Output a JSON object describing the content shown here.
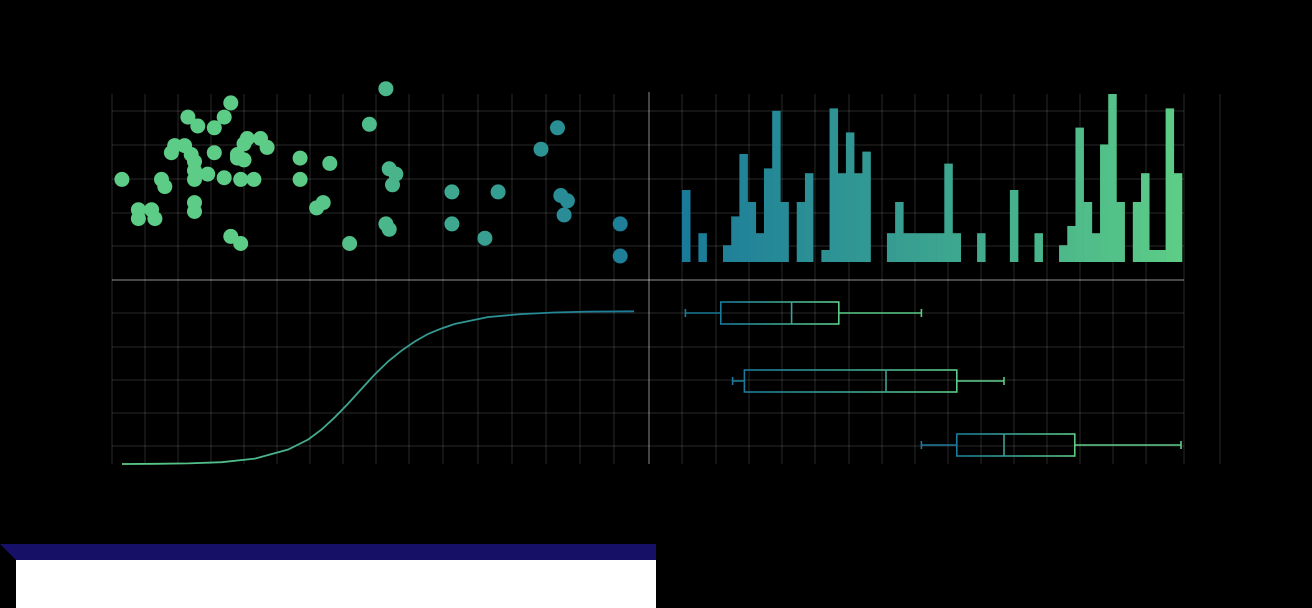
{
  "theme": {
    "background": "#000000",
    "gradient_start": "#1a7a9a",
    "gradient_end": "#5ccc86",
    "footer_bar": "#161067",
    "footer_panel": "#ffffff"
  },
  "chart_data": [
    {
      "type": "scatter",
      "grid": true,
      "legend": "none",
      "xlim": [
        0,
        16
      ],
      "ylim": [
        0,
        10
      ],
      "points": [
        [
          0.3,
          5.2
        ],
        [
          0.8,
          3.5
        ],
        [
          0.8,
          3.0
        ],
        [
          1.2,
          3.5
        ],
        [
          1.3,
          3.0
        ],
        [
          1.5,
          5.2
        ],
        [
          1.6,
          4.8
        ],
        [
          1.8,
          6.7
        ],
        [
          1.9,
          7.1
        ],
        [
          2.2,
          7.1
        ],
        [
          2.3,
          8.7
        ],
        [
          2.4,
          6.6
        ],
        [
          2.5,
          6.2
        ],
        [
          2.5,
          5.7
        ],
        [
          2.5,
          5.2
        ],
        [
          2.5,
          3.9
        ],
        [
          2.5,
          3.4
        ],
        [
          2.6,
          8.2
        ],
        [
          2.9,
          5.5
        ],
        [
          3.1,
          8.1
        ],
        [
          3.1,
          6.7
        ],
        [
          3.4,
          5.3
        ],
        [
          3.4,
          8.7
        ],
        [
          3.6,
          9.5
        ],
        [
          3.6,
          2.0
        ],
        [
          3.8,
          6.6
        ],
        [
          3.8,
          6.4
        ],
        [
          3.9,
          5.2
        ],
        [
          3.9,
          1.6
        ],
        [
          4.0,
          6.3
        ],
        [
          4.0,
          7.2
        ],
        [
          4.1,
          7.5
        ],
        [
          4.3,
          5.2
        ],
        [
          4.5,
          7.5
        ],
        [
          4.7,
          7.0
        ],
        [
          5.7,
          6.4
        ],
        [
          5.7,
          5.2
        ],
        [
          6.2,
          3.6
        ],
        [
          6.4,
          3.9
        ],
        [
          6.6,
          6.1
        ],
        [
          7.2,
          1.6
        ],
        [
          7.8,
          8.3
        ],
        [
          8.3,
          10.3
        ],
        [
          8.3,
          2.7
        ],
        [
          8.4,
          5.8
        ],
        [
          8.4,
          2.4
        ],
        [
          8.5,
          4.9
        ],
        [
          8.6,
          5.5
        ],
        [
          10.3,
          4.5
        ],
        [
          10.3,
          2.7
        ],
        [
          11.3,
          1.9
        ],
        [
          11.7,
          4.5
        ],
        [
          13.0,
          6.9
        ],
        [
          13.5,
          8.1
        ],
        [
          13.6,
          4.3
        ],
        [
          13.7,
          3.2
        ],
        [
          13.8,
          4.0
        ],
        [
          15.4,
          2.7
        ],
        [
          15.4,
          0.9
        ]
      ]
    },
    {
      "type": "bar",
      "subtype": "histogram",
      "grid": true,
      "legend": "none",
      "ylim": [
        0,
        7
      ],
      "values": [
        3,
        0,
        1.2,
        0,
        0,
        0.7,
        1.9,
        4.5,
        2.5,
        1.2,
        3.9,
        6.3,
        2.5,
        0,
        2.5,
        3.7,
        0,
        0.5,
        6.4,
        3.7,
        5.4,
        3.7,
        4.6,
        0,
        0,
        1.2,
        2.5,
        1.2,
        1.2,
        1.2,
        1.2,
        1.2,
        4.1,
        1.2,
        0,
        0,
        1.2,
        0,
        0,
        0,
        3.0,
        0,
        0,
        1.2,
        0,
        0,
        0.7,
        1.5,
        5.6,
        2.5,
        1.2,
        4.9,
        7.0,
        2.5,
        0,
        2.5,
        3.7,
        0.5,
        0.5,
        6.4,
        3.7
      ]
    },
    {
      "type": "line",
      "subtype": "sigmoid",
      "grid": true,
      "legend": "none",
      "xlim": [
        0,
        8
      ],
      "ylim": [
        0,
        1
      ],
      "x": [
        0.0,
        0.5,
        1.0,
        1.5,
        2.0,
        2.5,
        2.8,
        3.0,
        3.2,
        3.4,
        3.6,
        3.8,
        4.0,
        4.2,
        4.4,
        4.6,
        4.8,
        5.0,
        5.5,
        6.0,
        6.5,
        7.0,
        7.7
      ],
      "y": [
        0.0,
        0.001,
        0.004,
        0.012,
        0.035,
        0.095,
        0.16,
        0.225,
        0.305,
        0.395,
        0.49,
        0.585,
        0.67,
        0.74,
        0.8,
        0.85,
        0.885,
        0.915,
        0.96,
        0.98,
        0.99,
        0.996,
        0.998
      ]
    },
    {
      "type": "box",
      "orientation": "horizontal",
      "grid": true,
      "legend": "none",
      "xlim": [
        0,
        8
      ],
      "boxes": [
        {
          "min": 0.3,
          "q1": 0.6,
          "median": 1.2,
          "q3": 1.6,
          "max": 2.3
        },
        {
          "min": 0.7,
          "q1": 0.8,
          "median": 2.0,
          "q3": 2.6,
          "max": 3.0
        },
        {
          "min": 2.3,
          "q1": 2.6,
          "median": 3.0,
          "q3": 3.6,
          "max": 4.5
        }
      ]
    }
  ]
}
